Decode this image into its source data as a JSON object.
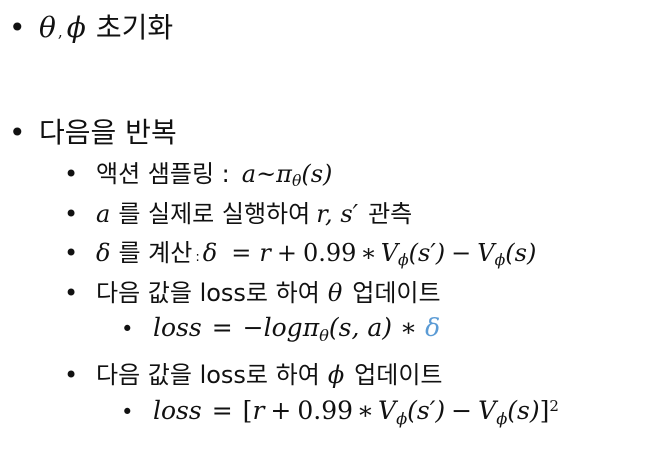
{
  "list": {
    "item1": {
      "bullet": "•",
      "theta": "θ",
      "comma": ",",
      "phi": "ϕ",
      "text": "초기화"
    },
    "item2": {
      "bullet": "•",
      "text": "다음을 반복"
    },
    "sub1": {
      "bullet": "•",
      "text": "액션 샘플링 :",
      "a": "a",
      "sim": "~",
      "pi": "π",
      "sub": "θ",
      "args": "(s)"
    },
    "sub2": {
      "bullet": "•",
      "a": "a",
      "text": "를 실제로 실행하여",
      "vars": "r, s′",
      "text2": "관측"
    },
    "sub3": {
      "bullet": "•",
      "delta": "δ",
      "text": "를 계산",
      "colon": ":",
      "lhs": "δ",
      "eq": "=",
      "r": "r",
      "plus": "+",
      "num": "0.99",
      "star": "∗",
      "V1": "V",
      "V1sub": "ϕ",
      "V1arg": "(s′)",
      "minus": "−",
      "V2": "V",
      "V2sub": "ϕ",
      "V2arg": "(s)"
    },
    "sub4": {
      "bullet": "•",
      "text": "다음 값을 loss로 하여",
      "theta": "θ",
      "text2": "업데이트"
    },
    "subsub1": {
      "bullet": "•",
      "loss": "loss",
      "eq": "=",
      "neg": "−",
      "log": "log",
      "pi": "π",
      "sub": "θ",
      "args": "(s, a)",
      "star": "∗",
      "delta": "δ"
    },
    "sub5": {
      "bullet": "•",
      "text": "다음 값을 loss로 하여",
      "phi": "ϕ",
      "text2": "업데이트"
    },
    "subsub2": {
      "bullet": "•",
      "loss": "loss",
      "eq": "=",
      "lb": "[",
      "r": "r",
      "plus": "+",
      "num": "0.99",
      "star": "∗",
      "V1": "V",
      "V1sub": "ϕ",
      "V1arg": "(s′)",
      "minus": "−",
      "V2": "V",
      "V2sub": "ϕ",
      "V2arg": "(s)",
      "rb": "]",
      "exp": "2"
    }
  },
  "colors": {
    "text": "#111111",
    "accent": "#5b9bd5"
  }
}
